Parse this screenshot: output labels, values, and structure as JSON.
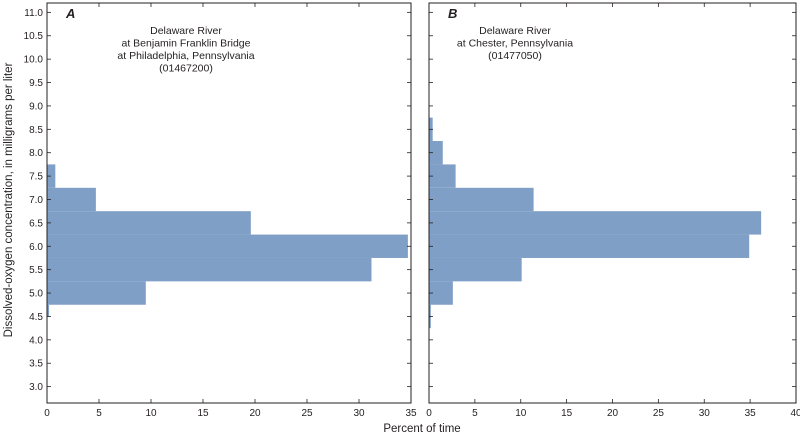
{
  "figure": {
    "ylabel": "Dissolved-oxygen concentration, in milligrams per liter",
    "xlabel": "Percent of time"
  },
  "chart_data": [
    {
      "type": "bar",
      "orientation": "horizontal",
      "panel": "A",
      "station": [
        "Delaware River",
        "at Benjamin Franklin Bridge",
        "at Philadelphia, Pennsylvania",
        "(01467200)"
      ],
      "bins": [
        {
          "low": 4.5,
          "high": 4.75,
          "value": 0.2
        },
        {
          "low": 4.75,
          "high": 5.25,
          "value": 9.5
        },
        {
          "low": 5.25,
          "high": 5.75,
          "value": 31.2
        },
        {
          "low": 5.75,
          "high": 6.25,
          "value": 34.7
        },
        {
          "low": 6.25,
          "high": 6.75,
          "value": 19.6
        },
        {
          "low": 6.75,
          "high": 7.25,
          "value": 4.7
        },
        {
          "low": 7.25,
          "high": 7.75,
          "value": 0.8
        }
      ],
      "xlim": [
        0,
        35
      ],
      "xticks": [
        0,
        5,
        10,
        15,
        20,
        25,
        30,
        35
      ],
      "ylim": [
        2.65,
        11.2
      ],
      "yticks": [
        "3.0",
        "3.5",
        "4.0",
        "4.5",
        "5.0",
        "5.5",
        "6.0",
        "6.5",
        "7.0",
        "7.5",
        "8.0",
        "8.5",
        "9.0",
        "9.5",
        "10.0",
        "10.5",
        "11.0"
      ],
      "grid": false
    },
    {
      "type": "bar",
      "orientation": "horizontal",
      "panel": "B",
      "station": [
        "Delaware River",
        "at Chester, Pennsylvania",
        "(01477050)"
      ],
      "bins": [
        {
          "low": 4.25,
          "high": 4.75,
          "value": 0.2
        },
        {
          "low": 4.75,
          "high": 5.25,
          "value": 2.6
        },
        {
          "low": 5.25,
          "high": 5.75,
          "value": 10.1
        },
        {
          "low": 5.75,
          "high": 6.25,
          "value": 34.9
        },
        {
          "low": 6.25,
          "high": 6.75,
          "value": 36.2
        },
        {
          "low": 6.75,
          "high": 7.25,
          "value": 11.4
        },
        {
          "low": 7.25,
          "high": 7.75,
          "value": 2.9
        },
        {
          "low": 7.75,
          "high": 8.25,
          "value": 1.5
        },
        {
          "low": 8.25,
          "high": 8.75,
          "value": 0.4
        }
      ],
      "xlim": [
        0,
        40
      ],
      "xticks": [
        0,
        5,
        10,
        15,
        20,
        25,
        30,
        35,
        40
      ],
      "ylim": [
        2.65,
        11.2
      ],
      "grid": false
    }
  ]
}
